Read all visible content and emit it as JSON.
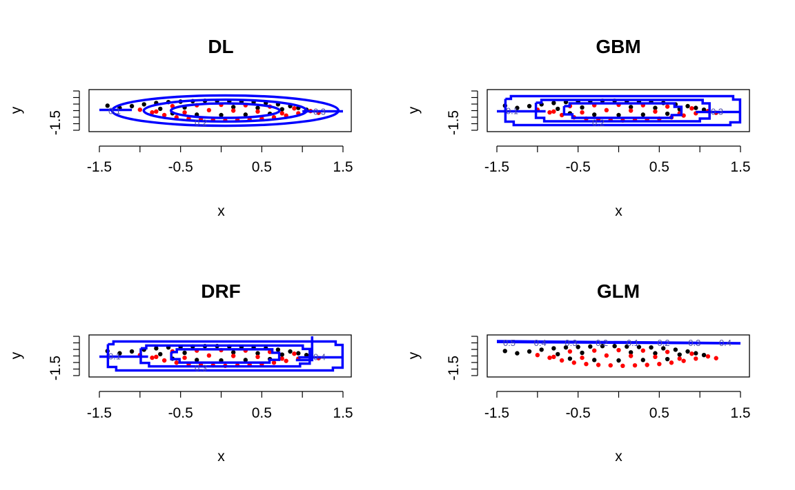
{
  "colors": {
    "class_a": "#000000",
    "class_b": "#ff0000",
    "boundary": "#0000ff"
  },
  "chart_data": [
    {
      "type": "scatter",
      "title": "DL",
      "xlabel": "x",
      "ylabel": "y",
      "xlim": [
        -1.5,
        1.5
      ],
      "ylim": [
        -1.5,
        1.5
      ],
      "x_ticks": [
        "-1.5",
        "-0.5",
        "0.5",
        "1.5"
      ],
      "y_ticks": [
        "-1.5"
      ],
      "contour_labels": [
        "0.1",
        "0.2",
        "0.3"
      ],
      "contour_shape": "rings",
      "contour_scales": [
        1.0,
        0.72,
        0.48
      ],
      "series": [
        {
          "color": "class_a",
          "x": [
            -1.4,
            -1.25,
            -1.1,
            -0.95,
            -0.8,
            -0.65,
            -0.5,
            -0.35,
            -0.2,
            -0.05,
            0.1,
            0.25,
            0.4,
            0.55,
            0.7,
            0.85,
            0.95,
            1.05,
            -0.6,
            -0.3,
            0.0,
            0.3,
            0.6,
            -0.45,
            0.15,
            0.45,
            0.75,
            -0.75
          ],
          "y": [
            0.55,
            0.3,
            0.5,
            0.7,
            0.85,
            0.95,
            1.0,
            1.05,
            1.1,
            1.1,
            1.05,
            1.0,
            0.95,
            0.85,
            0.7,
            0.5,
            0.3,
            0.1,
            -0.3,
            -0.45,
            -0.5,
            -0.45,
            -0.35,
            0.35,
            0.4,
            0.3,
            0.15,
            0.2
          ]
        },
        {
          "color": "class_b",
          "x": [
            -1.0,
            -0.85,
            -0.7,
            -0.55,
            -0.4,
            -0.25,
            -0.1,
            0.05,
            0.2,
            0.35,
            0.5,
            0.65,
            0.8,
            0.95,
            1.1,
            1.2,
            -0.6,
            -0.3,
            0.0,
            0.3,
            0.6,
            -0.45,
            -0.15,
            0.15,
            0.45,
            0.75,
            -0.8,
            0.9
          ],
          "y": [
            0.1,
            -0.2,
            -0.5,
            -0.75,
            -0.9,
            -1.0,
            -1.05,
            -1.1,
            -1.05,
            -1.0,
            -0.9,
            -0.75,
            -0.55,
            -0.3,
            -0.05,
            -0.25,
            0.5,
            0.6,
            0.65,
            0.6,
            0.45,
            -0.2,
            0.05,
            0.0,
            -0.1,
            -0.3,
            -0.1,
            0.25
          ]
        }
      ]
    },
    {
      "type": "scatter",
      "title": "GBM",
      "xlabel": "x",
      "ylabel": "y",
      "xlim": [
        -1.5,
        1.5
      ],
      "ylim": [
        -1.5,
        1.5
      ],
      "x_ticks": [
        "-1.5",
        "-0.5",
        "0.5",
        "1.5"
      ],
      "y_ticks": [
        "-1.5"
      ],
      "contour_labels": [
        "0.1",
        "0.2",
        "0.3"
      ],
      "contour_shape": "boxes",
      "contour_scales": [
        1.0,
        0.74,
        0.5
      ],
      "series": [
        {
          "color": "class_a",
          "x": [
            -1.4,
            -1.25,
            -1.1,
            -0.95,
            -0.8,
            -0.65,
            -0.5,
            -0.35,
            -0.2,
            -0.05,
            0.1,
            0.25,
            0.4,
            0.55,
            0.7,
            0.85,
            0.95,
            1.05,
            -0.6,
            -0.3,
            0.0,
            0.3,
            0.6,
            -0.45,
            0.15,
            0.45,
            0.75,
            -0.75
          ],
          "y": [
            0.55,
            0.3,
            0.5,
            0.7,
            0.85,
            0.95,
            1.0,
            1.05,
            1.1,
            1.1,
            1.05,
            1.0,
            0.95,
            0.85,
            0.7,
            0.5,
            0.3,
            0.1,
            -0.3,
            -0.45,
            -0.5,
            -0.45,
            -0.35,
            0.35,
            0.4,
            0.3,
            0.15,
            0.2
          ]
        },
        {
          "color": "class_b",
          "x": [
            -1.0,
            -0.85,
            -0.7,
            -0.55,
            -0.4,
            -0.25,
            -0.1,
            0.05,
            0.2,
            0.35,
            0.5,
            0.65,
            0.8,
            0.95,
            1.1,
            1.2,
            -0.6,
            -0.3,
            0.0,
            0.3,
            0.6,
            -0.45,
            -0.15,
            0.15,
            0.45,
            0.75,
            -0.8,
            0.9
          ],
          "y": [
            0.1,
            -0.2,
            -0.5,
            -0.75,
            -0.9,
            -1.0,
            -1.05,
            -1.1,
            -1.05,
            -1.0,
            -0.9,
            -0.75,
            -0.55,
            -0.3,
            -0.05,
            -0.25,
            0.5,
            0.6,
            0.65,
            0.6,
            0.45,
            -0.2,
            0.05,
            0.0,
            -0.1,
            -0.3,
            -0.1,
            0.25
          ]
        }
      ]
    },
    {
      "type": "scatter",
      "title": "DRF",
      "xlabel": "x",
      "ylabel": "y",
      "xlim": [
        -1.5,
        1.5
      ],
      "ylim": [
        -1.5,
        1.5
      ],
      "x_ticks": [
        "-1.5",
        "-0.5",
        "0.5",
        "1.5"
      ],
      "y_ticks": [
        "-1.5"
      ],
      "contour_labels": [
        "0.1",
        "0.3",
        "0.4"
      ],
      "contour_shape": "boxes",
      "contour_scales": [
        1.0,
        0.72,
        0.46
      ],
      "series": [
        {
          "color": "class_a",
          "x": [
            -1.4,
            -1.25,
            -1.1,
            -0.95,
            -0.8,
            -0.65,
            -0.5,
            -0.35,
            -0.2,
            -0.05,
            0.1,
            0.25,
            0.4,
            0.55,
            0.7,
            0.85,
            0.95,
            1.05,
            -0.6,
            -0.3,
            0.0,
            0.3,
            0.6,
            -0.45,
            0.15,
            0.45,
            0.75,
            -0.75
          ],
          "y": [
            0.55,
            0.3,
            0.5,
            0.7,
            0.85,
            0.95,
            1.0,
            1.05,
            1.1,
            1.1,
            1.05,
            1.0,
            0.95,
            0.85,
            0.7,
            0.5,
            0.3,
            0.1,
            -0.3,
            -0.45,
            -0.5,
            -0.45,
            -0.35,
            0.35,
            0.4,
            0.3,
            0.15,
            0.2
          ]
        },
        {
          "color": "class_b",
          "x": [
            -1.0,
            -0.85,
            -0.7,
            -0.55,
            -0.4,
            -0.25,
            -0.1,
            0.05,
            0.2,
            0.35,
            0.5,
            0.65,
            0.8,
            0.95,
            1.1,
            1.2,
            -0.6,
            -0.3,
            0.0,
            0.3,
            0.6,
            -0.45,
            -0.15,
            0.15,
            0.45,
            0.75,
            -0.8,
            0.9
          ],
          "y": [
            0.1,
            -0.2,
            -0.5,
            -0.75,
            -0.9,
            -1.0,
            -1.05,
            -1.1,
            -1.05,
            -1.0,
            -0.9,
            -0.75,
            -0.55,
            -0.3,
            -0.05,
            -0.25,
            0.5,
            0.6,
            0.65,
            0.6,
            0.45,
            -0.2,
            0.05,
            0.0,
            -0.1,
            -0.3,
            -0.1,
            0.25
          ]
        }
      ]
    },
    {
      "type": "scatter",
      "title": "GLM",
      "xlabel": "x",
      "ylabel": "y",
      "xlim": [
        -1.5,
        1.5
      ],
      "ylim": [
        -1.5,
        1.5
      ],
      "x_ticks": [
        "-1.5",
        "-0.5",
        "0.5",
        "1.5"
      ],
      "y_ticks": [
        "-1.5"
      ],
      "contour_labels": [
        "0.5",
        "0.4",
        "0.3",
        "0.2",
        "0.1",
        "0.2",
        "0.3",
        "0.4"
      ],
      "contour_shape": "lines",
      "contour_scales": [],
      "series": [
        {
          "color": "class_a",
          "x": [
            -1.4,
            -1.25,
            -1.1,
            -0.95,
            -0.8,
            -0.65,
            -0.5,
            -0.35,
            -0.2,
            -0.05,
            0.1,
            0.25,
            0.4,
            0.55,
            0.7,
            0.85,
            0.95,
            1.05,
            -0.6,
            -0.3,
            0.0,
            0.3,
            0.6,
            -0.45,
            0.15,
            0.45,
            0.75,
            -0.75
          ],
          "y": [
            0.55,
            0.3,
            0.5,
            0.7,
            0.85,
            0.95,
            1.0,
            1.05,
            1.1,
            1.1,
            1.05,
            1.0,
            0.95,
            0.85,
            0.7,
            0.5,
            0.3,
            0.1,
            -0.3,
            -0.45,
            -0.5,
            -0.45,
            -0.35,
            0.35,
            0.4,
            0.3,
            0.15,
            0.2
          ]
        },
        {
          "color": "class_b",
          "x": [
            -1.0,
            -0.85,
            -0.7,
            -0.55,
            -0.4,
            -0.25,
            -0.1,
            0.05,
            0.2,
            0.35,
            0.5,
            0.65,
            0.8,
            0.95,
            1.1,
            1.2,
            -0.6,
            -0.3,
            0.0,
            0.3,
            0.6,
            -0.45,
            -0.15,
            0.15,
            0.45,
            0.75,
            -0.8,
            0.9
          ],
          "y": [
            0.1,
            -0.2,
            -0.5,
            -0.75,
            -0.9,
            -1.0,
            -1.05,
            -1.1,
            -1.05,
            -1.0,
            -0.9,
            -0.75,
            -0.55,
            -0.3,
            -0.05,
            -0.25,
            0.5,
            0.6,
            0.65,
            0.6,
            0.45,
            -0.2,
            0.05,
            0.0,
            -0.1,
            -0.3,
            -0.1,
            0.25
          ]
        }
      ]
    }
  ]
}
